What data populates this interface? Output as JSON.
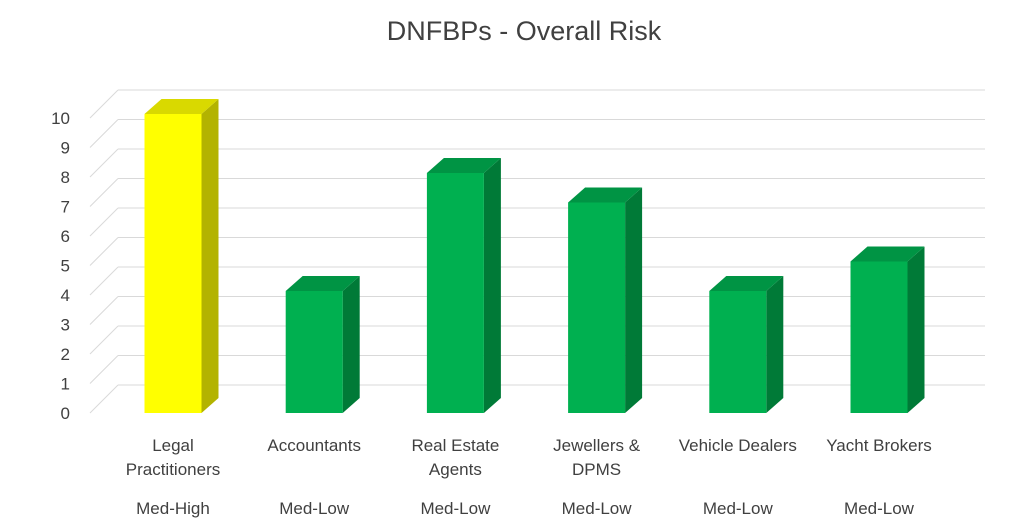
{
  "chart_data": {
    "type": "bar",
    "title": "DNFBPs - Overall Risk",
    "xlabel": "",
    "ylabel": "",
    "ylim": [
      0,
      10
    ],
    "yticks": [
      "0",
      "1",
      "2",
      "3",
      "4",
      "5",
      "6",
      "7",
      "8",
      "9",
      "10"
    ],
    "grid": true,
    "style": "3d-column",
    "categories": [
      [
        "Legal",
        "Practitioners"
      ],
      [
        "Accountants"
      ],
      [
        "Real Estate",
        "Agents"
      ],
      [
        "Jewellers &",
        "DPMS"
      ],
      [
        "Vehicle Dealers"
      ],
      [
        "Yacht Brokers"
      ]
    ],
    "values": [
      10,
      4,
      8,
      7,
      4,
      5
    ],
    "risk_labels": [
      "Med-High",
      "Med-Low",
      "Med-Low",
      "Med-Low",
      "Med-Low",
      "Med-Low"
    ],
    "bar_colors": [
      "#ffff00",
      "#00b050",
      "#00b050",
      "#00b050",
      "#00b050",
      "#00b050"
    ],
    "bar_side_colors": [
      "#b3b300",
      "#007a37",
      "#007a37",
      "#007a37",
      "#007a37",
      "#007a37"
    ],
    "bar_top_colors": [
      "#d9d900",
      "#009444",
      "#009444",
      "#009444",
      "#009444",
      "#009444"
    ]
  }
}
